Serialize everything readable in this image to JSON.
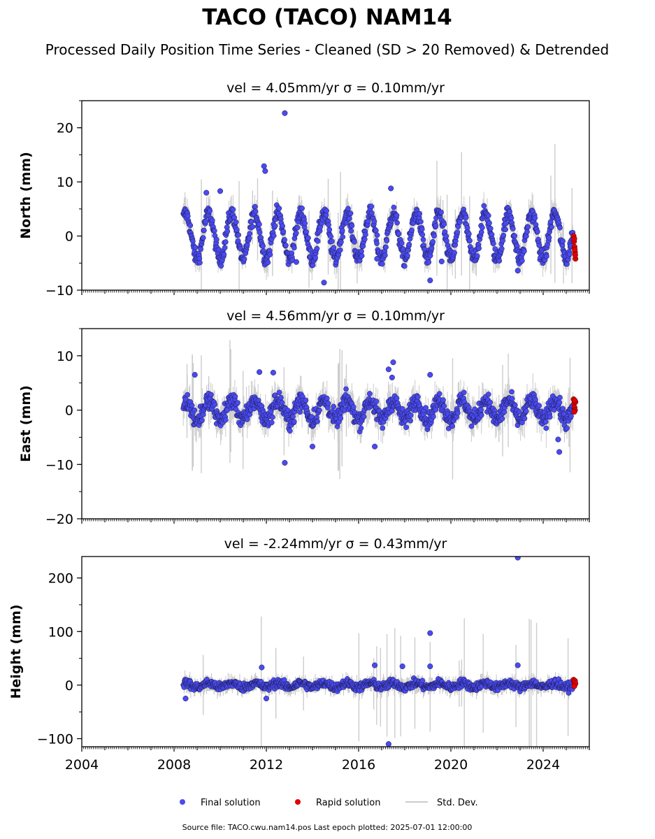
{
  "chart_data": {
    "type": "scatter",
    "title": "TACO (TACO) NAM14",
    "subtitle": "Processed Daily Position Time Series - Cleaned (SD > 20 Removed) & Detrended",
    "xlim": [
      2004,
      2026
    ],
    "xticks": [
      2004,
      2008,
      2012,
      2016,
      2020,
      2024
    ],
    "grid": false,
    "legend_placement": "bottom-center",
    "legend": [
      {
        "label": "Final solution",
        "marker": "dot",
        "color": "#4a4af0"
      },
      {
        "label": "Rapid solution",
        "marker": "dot",
        "color": "#e00000"
      },
      {
        "label": "Std. Dev.",
        "marker": "line",
        "color": "#cccccc"
      }
    ],
    "footer": "Source file: TACO.cwu.nam14.pos  Last epoch plotted: 2025-07-01 12:00:00",
    "colors": {
      "final": "#4a4af0",
      "rapid": "#e00000",
      "stddev": "#cccccc"
    },
    "panels": [
      {
        "name": "north",
        "title": "vel = 4.05mm/yr   σ = 0.10mm/yr",
        "ylabel": "North (mm)",
        "ylim": [
          -10,
          25
        ],
        "yticks": [
          -10,
          0,
          10,
          20
        ],
        "yticklabels": [
          "−10",
          "0",
          "10",
          "20"
        ],
        "final_range": [
          2008.4,
          2025.3
        ],
        "amplitude": 4.2,
        "noise": 1.3,
        "outliers": [
          [
            2012.8,
            22.7
          ],
          [
            2011.9,
            12.9
          ],
          [
            2011.95,
            12.0
          ],
          [
            2014.5,
            -8.6
          ],
          [
            2019.1,
            -8.2
          ],
          [
            2022.9,
            -6.4
          ],
          [
            2019.6,
            -4.7
          ],
          [
            2013.3,
            -4.8
          ],
          [
            2016.8,
            -4.2
          ],
          [
            2009.4,
            8.0
          ],
          [
            2010.0,
            8.3
          ],
          [
            2017.4,
            8.8
          ]
        ],
        "rapid": [
          [
            2025.32,
            0.0
          ],
          [
            2025.34,
            -1.0
          ],
          [
            2025.36,
            -2.0
          ],
          [
            2025.38,
            -3.0
          ],
          [
            2025.4,
            -4.2
          ],
          [
            2025.35,
            -0.5
          ],
          [
            2025.37,
            -2.5
          ],
          [
            2025.39,
            -3.5
          ]
        ]
      },
      {
        "name": "east",
        "title": "vel = 4.56mm/yr   σ = 0.10mm/yr",
        "ylabel": "East (mm)",
        "ylim": [
          -20,
          15
        ],
        "yticks": [
          -20,
          -10,
          0,
          10
        ],
        "yticklabels": [
          "−20",
          "−10",
          "0",
          "10"
        ],
        "final_range": [
          2008.4,
          2025.3
        ],
        "amplitude": 1.8,
        "noise": 1.5,
        "outliers": [
          [
            2008.9,
            6.5
          ],
          [
            2011.7,
            7.0
          ],
          [
            2012.3,
            6.9
          ],
          [
            2012.8,
            -9.7
          ],
          [
            2014.0,
            -6.7
          ],
          [
            2016.7,
            -6.7
          ],
          [
            2017.3,
            7.5
          ],
          [
            2017.5,
            8.8
          ],
          [
            2017.45,
            6.0
          ],
          [
            2019.1,
            6.5
          ],
          [
            2024.7,
            -7.7
          ],
          [
            2024.65,
            -5.4
          ]
        ],
        "rapid": [
          [
            2025.32,
            2.0
          ],
          [
            2025.34,
            1.2
          ],
          [
            2025.36,
            0.5
          ],
          [
            2025.38,
            0.0
          ],
          [
            2025.4,
            1.5
          ],
          [
            2025.35,
            -0.3
          ],
          [
            2025.37,
            1.8
          ]
        ]
      },
      {
        "name": "height",
        "title": "vel = -2.24mm/yr   σ = 0.43mm/yr",
        "ylabel": "Height (mm)",
        "ylim": [
          -115,
          240
        ],
        "yticks": [
          -100,
          0,
          100,
          200
        ],
        "yticklabels": [
          "−100",
          "0",
          "100",
          "200"
        ],
        "final_range": [
          2008.4,
          2025.3
        ],
        "amplitude": 4,
        "noise": 7,
        "outliers": [
          [
            2022.9,
            238
          ],
          [
            2019.1,
            97
          ],
          [
            2017.3,
            -110
          ],
          [
            2019.1,
            35
          ],
          [
            2017.9,
            35
          ],
          [
            2022.9,
            37
          ],
          [
            2011.8,
            33
          ],
          [
            2016.7,
            37
          ],
          [
            2008.5,
            -25
          ],
          [
            2012.0,
            -25
          ]
        ],
        "rapid": [
          [
            2025.32,
            10.0
          ],
          [
            2025.34,
            5.0
          ],
          [
            2025.36,
            0.0
          ],
          [
            2025.38,
            8.0
          ],
          [
            2025.4,
            3.0
          ],
          [
            2025.35,
            -2.0
          ]
        ]
      }
    ]
  }
}
